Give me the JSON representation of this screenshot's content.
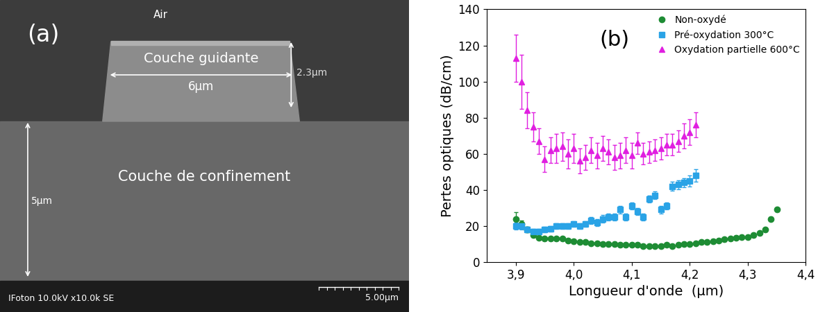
{
  "panel_a": {
    "label": "(a)",
    "air": "Air",
    "guiding_layer": "Couche guidante",
    "width": "6µm",
    "height": "2.3µm",
    "confinement_thickness": "5µm",
    "confinement_layer": "Couche de confinement",
    "info_bar": "IFoton 10.0kV x10.0k SE",
    "scale_bar": "5.00µm"
  },
  "chart_data": {
    "type": "scatter",
    "title": "(b)",
    "x_label": "Longueur d'onde  (µm)",
    "y_label": "Pertes optiques (dB/cm)",
    "xlim": [
      3.85,
      4.4
    ],
    "xticks": [
      {
        "value": 3.9,
        "label": "3,9"
      },
      {
        "value": 4.0,
        "label": "4,0"
      },
      {
        "value": 4.1,
        "label": "4,1"
      },
      {
        "value": 4.2,
        "label": "4,2"
      },
      {
        "value": 4.3,
        "label": "4,3"
      },
      {
        "value": 4.4,
        "label": "4,4"
      }
    ],
    "ylim": [
      0,
      140
    ],
    "yticks": [
      0,
      20,
      40,
      60,
      80,
      100,
      120,
      140
    ],
    "legend": "upper right",
    "grid": false,
    "series": [
      {
        "name": "Non-oxydé",
        "color": "#1e8c34",
        "marker": "circle",
        "x": [
          3.9,
          3.91,
          3.92,
          3.93,
          3.94,
          3.95,
          3.96,
          3.97,
          3.98,
          3.99,
          4.0,
          4.01,
          4.02,
          4.03,
          4.04,
          4.05,
          4.06,
          4.07,
          4.08,
          4.09,
          4.1,
          4.11,
          4.12,
          4.13,
          4.14,
          4.15,
          4.16,
          4.17,
          4.18,
          4.19,
          4.2,
          4.21,
          4.22,
          4.23,
          4.24,
          4.25,
          4.26,
          4.27,
          4.28,
          4.29,
          4.3,
          4.31,
          4.32,
          4.33,
          4.34,
          4.35
        ],
        "values": [
          24,
          21,
          18,
          15,
          13.5,
          13,
          13,
          13,
          13,
          12,
          11.5,
          11,
          11,
          10.5,
          10.5,
          10,
          10,
          10,
          9.5,
          9.5,
          9.5,
          9.5,
          9,
          9,
          9,
          9,
          9.5,
          9,
          9.5,
          10,
          10,
          10.5,
          11,
          11,
          11.5,
          12,
          12.5,
          13,
          13.5,
          14,
          14,
          15,
          16,
          18,
          24,
          29
        ],
        "errors": [
          3.5,
          2,
          1.5,
          1,
          1,
          1,
          1,
          1,
          1,
          1,
          1,
          1,
          1,
          1,
          1,
          1,
          1,
          1,
          1,
          1,
          1,
          1,
          1,
          1,
          1,
          1,
          1,
          1,
          1,
          1,
          1,
          1,
          1,
          1,
          1,
          1,
          1,
          1,
          1,
          1,
          1,
          1,
          1,
          1,
          1,
          1
        ]
      },
      {
        "name": "Pré-oxydation 300°C",
        "color": "#2aa3e6",
        "marker": "square",
        "x": [
          3.9,
          3.91,
          3.92,
          3.93,
          3.94,
          3.95,
          3.96,
          3.97,
          3.98,
          3.99,
          4.0,
          4.01,
          4.02,
          4.03,
          4.04,
          4.05,
          4.06,
          4.07,
          4.08,
          4.09,
          4.1,
          4.11,
          4.12,
          4.13,
          4.14,
          4.15,
          4.16,
          4.17,
          4.18,
          4.19,
          4.2,
          4.21
        ],
        "values": [
          20,
          20,
          18,
          17,
          17,
          18,
          18.5,
          20,
          20,
          20,
          21,
          20,
          21,
          23,
          22,
          24,
          25,
          25,
          29,
          25,
          31,
          28,
          25,
          35,
          37,
          29,
          31,
          42,
          43,
          44,
          45,
          48
        ],
        "errors": [
          2,
          2,
          1.5,
          1.5,
          1.5,
          1.5,
          1.5,
          1.5,
          1.5,
          1.5,
          1.5,
          1.5,
          1.5,
          2,
          2,
          2,
          2,
          2,
          2,
          2,
          2,
          2,
          2,
          2,
          2,
          2,
          2,
          2.5,
          2.5,
          2.5,
          3,
          3.5
        ]
      },
      {
        "name": "Oxydation partielle 600°C",
        "color": "#e01fe0",
        "marker": "triangle",
        "x": [
          3.9,
          3.91,
          3.92,
          3.93,
          3.94,
          3.95,
          3.96,
          3.97,
          3.98,
          3.99,
          4.0,
          4.01,
          4.02,
          4.03,
          4.04,
          4.05,
          4.06,
          4.07,
          4.08,
          4.09,
          4.1,
          4.11,
          4.12,
          4.13,
          4.14,
          4.15,
          4.16,
          4.17,
          4.18,
          4.19,
          4.2,
          4.21
        ],
        "values": [
          113,
          100,
          84,
          75,
          67,
          57,
          62,
          63,
          64,
          60,
          63,
          56,
          58,
          62,
          59,
          63,
          61,
          58,
          59,
          62,
          59,
          66,
          60,
          61,
          62,
          63,
          65,
          65,
          67,
          70,
          72,
          76
        ],
        "errors": [
          13,
          15,
          10,
          8,
          7,
          7,
          7,
          8,
          8,
          8,
          8,
          7,
          7,
          7,
          7,
          7,
          7,
          7,
          7,
          7,
          7,
          6,
          6,
          6,
          6,
          6,
          6,
          6,
          6,
          7,
          7,
          7
        ]
      }
    ]
  }
}
